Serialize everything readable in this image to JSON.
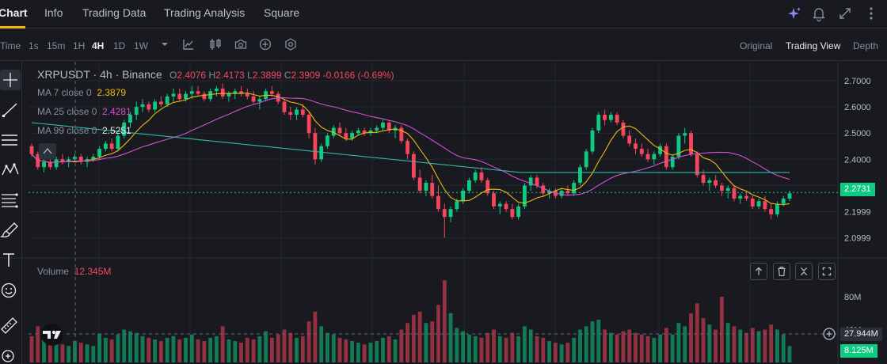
{
  "nav": {
    "tabs": [
      "Chart",
      "Info",
      "Trading Data",
      "Trading Analysis",
      "Square"
    ],
    "active": 0
  },
  "toolbar": {
    "time_label": "Time",
    "intervals": [
      "1s",
      "15m",
      "1H",
      "4H",
      "1D",
      "1W"
    ],
    "active_interval": 3,
    "views": [
      "Original",
      "Trading View",
      "Depth"
    ],
    "active_view": 1
  },
  "legend": {
    "symbol": "XRPUSDT · 4h · Binance",
    "o_label": "O",
    "o": "2.4076",
    "h_label": "H",
    "h": "2.4173",
    "l_label": "L",
    "l": "2.3899",
    "c_label": "C",
    "c": "2.3909",
    "change": "-0.0166 (-0.69%)",
    "ma7_label": "MA 7 close 0",
    "ma7": "2.3879",
    "ma25_label": "MA 25 close 0",
    "ma25": "2.4281",
    "ma99_label": "MA 99 close 0",
    "ma99": "2.5251",
    "volume_label": "Volume",
    "volume": "12.345M"
  },
  "price_axis": [
    "2.7000",
    "2.6000",
    "2.5000",
    "2.4000",
    "2.3000",
    "2.1999",
    "2.0999"
  ],
  "volume_axis": [
    "80M",
    "40M"
  ],
  "current_price": "2.2731",
  "cursor_volume": "27.944M",
  "last_volume": "8.125M",
  "colors": {
    "up": "#0ecb81",
    "down": "#f6465d",
    "ma7": "#f0b90b",
    "ma25": "#d64fd6",
    "ma99": "#2fb9a6",
    "bg": "#181a20",
    "grid": "#2b3139"
  },
  "chart_data": {
    "type": "candlestick",
    "price_ylim": [
      2.05,
      2.75
    ],
    "volume_ylim": [
      0,
      110
    ],
    "volume_unit": "M",
    "candles": [
      [
        2.45,
        2.46,
        2.41,
        2.42,
        32
      ],
      [
        2.42,
        2.43,
        2.36,
        2.37,
        44
      ],
      [
        2.37,
        2.4,
        2.35,
        2.39,
        28
      ],
      [
        2.39,
        2.4,
        2.36,
        2.37,
        30
      ],
      [
        2.37,
        2.41,
        2.36,
        2.4,
        25
      ],
      [
        2.4,
        2.42,
        2.38,
        2.39,
        22
      ],
      [
        2.39,
        2.41,
        2.37,
        2.4,
        20
      ],
      [
        2.4,
        2.42,
        2.39,
        2.41,
        26
      ],
      [
        2.41,
        2.42,
        2.38,
        2.39,
        24
      ],
      [
        2.39,
        2.41,
        2.37,
        2.4,
        22
      ],
      [
        2.4,
        2.42,
        2.39,
        2.41,
        20
      ],
      [
        2.41,
        2.45,
        2.4,
        2.44,
        35
      ],
      [
        2.44,
        2.47,
        2.43,
        2.46,
        30
      ],
      [
        2.46,
        2.48,
        2.43,
        2.44,
        28
      ],
      [
        2.44,
        2.5,
        2.43,
        2.49,
        34
      ],
      [
        2.49,
        2.55,
        2.48,
        2.54,
        40
      ],
      [
        2.54,
        2.58,
        2.52,
        2.57,
        38
      ],
      [
        2.57,
        2.62,
        2.55,
        2.6,
        36
      ],
      [
        2.6,
        2.63,
        2.58,
        2.61,
        32
      ],
      [
        2.61,
        2.62,
        2.58,
        2.59,
        30
      ],
      [
        2.59,
        2.63,
        2.58,
        2.62,
        28
      ],
      [
        2.62,
        2.64,
        2.6,
        2.61,
        26
      ],
      [
        2.61,
        2.65,
        2.6,
        2.64,
        30
      ],
      [
        2.64,
        2.67,
        2.62,
        2.65,
        32
      ],
      [
        2.65,
        2.67,
        2.62,
        2.63,
        28
      ],
      [
        2.63,
        2.66,
        2.62,
        2.65,
        30
      ],
      [
        2.65,
        2.68,
        2.63,
        2.66,
        34
      ],
      [
        2.66,
        2.68,
        2.64,
        2.65,
        28
      ],
      [
        2.65,
        2.66,
        2.62,
        2.63,
        26
      ],
      [
        2.63,
        2.67,
        2.62,
        2.66,
        30
      ],
      [
        2.66,
        2.68,
        2.64,
        2.67,
        32
      ],
      [
        2.67,
        2.69,
        2.63,
        2.64,
        44
      ],
      [
        2.64,
        2.66,
        2.62,
        2.65,
        28
      ],
      [
        2.65,
        2.67,
        2.63,
        2.66,
        26
      ],
      [
        2.66,
        2.68,
        2.64,
        2.65,
        24
      ],
      [
        2.65,
        2.67,
        2.63,
        2.64,
        30
      ],
      [
        2.64,
        2.66,
        2.61,
        2.62,
        28
      ],
      [
        2.62,
        2.64,
        2.59,
        2.63,
        32
      ],
      [
        2.63,
        2.67,
        2.62,
        2.66,
        38
      ],
      [
        2.66,
        2.68,
        2.64,
        2.65,
        30
      ],
      [
        2.65,
        2.66,
        2.61,
        2.62,
        34
      ],
      [
        2.62,
        2.63,
        2.57,
        2.58,
        40
      ],
      [
        2.58,
        2.6,
        2.55,
        2.57,
        36
      ],
      [
        2.57,
        2.6,
        2.55,
        2.59,
        30
      ],
      [
        2.59,
        2.61,
        2.56,
        2.57,
        32
      ],
      [
        2.57,
        2.58,
        2.48,
        2.5,
        50
      ],
      [
        2.5,
        2.52,
        2.38,
        2.4,
        62
      ],
      [
        2.4,
        2.46,
        2.39,
        2.45,
        44
      ],
      [
        2.45,
        2.5,
        2.44,
        2.49,
        36
      ],
      [
        2.49,
        2.53,
        2.48,
        2.52,
        34
      ],
      [
        2.52,
        2.54,
        2.49,
        2.5,
        30
      ],
      [
        2.5,
        2.52,
        2.47,
        2.48,
        28
      ],
      [
        2.48,
        2.51,
        2.47,
        2.5,
        26
      ],
      [
        2.5,
        2.52,
        2.49,
        2.51,
        24
      ],
      [
        2.51,
        2.52,
        2.49,
        2.5,
        22
      ],
      [
        2.5,
        2.52,
        2.49,
        2.51,
        24
      ],
      [
        2.51,
        2.53,
        2.5,
        2.52,
        26
      ],
      [
        2.52,
        2.55,
        2.51,
        2.54,
        30
      ],
      [
        2.54,
        2.55,
        2.5,
        2.51,
        32
      ],
      [
        2.51,
        2.53,
        2.48,
        2.52,
        28
      ],
      [
        2.52,
        2.53,
        2.46,
        2.47,
        40
      ],
      [
        2.47,
        2.48,
        2.4,
        2.42,
        48
      ],
      [
        2.42,
        2.43,
        2.32,
        2.33,
        58
      ],
      [
        2.33,
        2.36,
        2.27,
        2.28,
        62
      ],
      [
        2.28,
        2.32,
        2.26,
        2.31,
        48
      ],
      [
        2.31,
        2.34,
        2.25,
        2.26,
        50
      ],
      [
        2.26,
        2.3,
        2.2,
        2.21,
        70
      ],
      [
        2.21,
        2.23,
        2.1,
        2.18,
        100
      ],
      [
        2.18,
        2.22,
        2.16,
        2.21,
        60
      ],
      [
        2.21,
        2.25,
        2.2,
        2.24,
        42
      ],
      [
        2.24,
        2.29,
        2.23,
        2.28,
        38
      ],
      [
        2.28,
        2.33,
        2.27,
        2.32,
        34
      ],
      [
        2.32,
        2.36,
        2.31,
        2.35,
        32
      ],
      [
        2.35,
        2.37,
        2.31,
        2.32,
        30
      ],
      [
        2.32,
        2.33,
        2.26,
        2.27,
        36
      ],
      [
        2.27,
        2.28,
        2.21,
        2.22,
        40
      ],
      [
        2.22,
        2.24,
        2.19,
        2.23,
        32
      ],
      [
        2.23,
        2.24,
        2.2,
        2.21,
        30
      ],
      [
        2.21,
        2.23,
        2.17,
        2.18,
        36
      ],
      [
        2.18,
        2.23,
        2.17,
        2.22,
        32
      ],
      [
        2.22,
        2.31,
        2.21,
        2.3,
        44
      ],
      [
        2.3,
        2.34,
        2.28,
        2.33,
        40
      ],
      [
        2.33,
        2.34,
        2.29,
        2.3,
        32
      ],
      [
        2.3,
        2.31,
        2.26,
        2.27,
        30
      ],
      [
        2.27,
        2.29,
        2.25,
        2.28,
        26
      ],
      [
        2.28,
        2.29,
        2.25,
        2.26,
        24
      ],
      [
        2.26,
        2.29,
        2.25,
        2.28,
        22
      ],
      [
        2.28,
        2.3,
        2.26,
        2.27,
        24
      ],
      [
        2.27,
        2.32,
        2.26,
        2.31,
        30
      ],
      [
        2.31,
        2.38,
        2.3,
        2.37,
        40
      ],
      [
        2.37,
        2.44,
        2.36,
        2.43,
        44
      ],
      [
        2.43,
        2.52,
        2.42,
        2.51,
        50
      ],
      [
        2.51,
        2.58,
        2.5,
        2.57,
        52
      ],
      [
        2.57,
        2.59,
        2.53,
        2.55,
        40
      ],
      [
        2.55,
        2.58,
        2.54,
        2.57,
        36
      ],
      [
        2.57,
        2.58,
        2.53,
        2.54,
        34
      ],
      [
        2.54,
        2.55,
        2.48,
        2.49,
        38
      ],
      [
        2.49,
        2.51,
        2.45,
        2.46,
        40
      ],
      [
        2.46,
        2.48,
        2.42,
        2.44,
        36
      ],
      [
        2.44,
        2.46,
        2.41,
        2.42,
        34
      ],
      [
        2.42,
        2.44,
        2.39,
        2.4,
        32
      ],
      [
        2.4,
        2.43,
        2.38,
        2.42,
        30
      ],
      [
        2.42,
        2.46,
        2.41,
        2.45,
        34
      ],
      [
        2.45,
        2.46,
        2.36,
        2.37,
        42
      ],
      [
        2.37,
        2.42,
        2.36,
        2.41,
        34
      ],
      [
        2.41,
        2.5,
        2.4,
        2.49,
        48
      ],
      [
        2.49,
        2.52,
        2.46,
        2.5,
        44
      ],
      [
        2.5,
        2.51,
        2.41,
        2.42,
        60
      ],
      [
        2.42,
        2.43,
        2.33,
        2.34,
        72
      ],
      [
        2.34,
        2.36,
        2.3,
        2.31,
        54
      ],
      [
        2.31,
        2.33,
        2.28,
        2.32,
        46
      ],
      [
        2.32,
        2.34,
        2.29,
        2.3,
        40
      ],
      [
        2.3,
        2.31,
        2.26,
        2.28,
        80
      ],
      [
        2.28,
        2.3,
        2.25,
        2.29,
        48
      ],
      [
        2.29,
        2.3,
        2.24,
        2.25,
        44
      ],
      [
        2.25,
        2.27,
        2.23,
        2.26,
        40
      ],
      [
        2.26,
        2.28,
        2.24,
        2.25,
        36
      ],
      [
        2.25,
        2.26,
        2.21,
        2.22,
        42
      ],
      [
        2.22,
        2.25,
        2.21,
        2.24,
        38
      ],
      [
        2.24,
        2.26,
        2.2,
        2.21,
        40
      ],
      [
        2.21,
        2.23,
        2.17,
        2.19,
        46
      ],
      [
        2.19,
        2.24,
        2.18,
        2.23,
        40
      ],
      [
        2.23,
        2.26,
        2.22,
        2.25,
        34
      ],
      [
        2.25,
        2.28,
        2.24,
        2.27,
        20
      ]
    ]
  }
}
